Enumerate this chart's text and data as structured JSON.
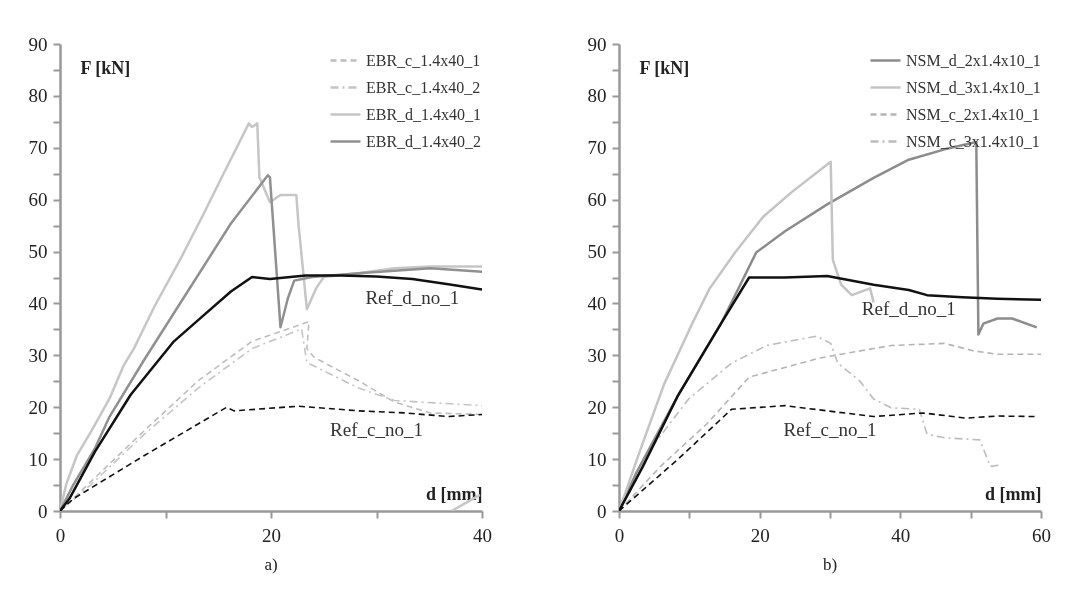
{
  "chart_data": [
    {
      "type": "line",
      "xlabel": "d [mm]",
      "ylabel": "F [kN]",
      "xlim": [
        0,
        40
      ],
      "ylim": [
        0,
        90
      ],
      "xticks": [
        0,
        {
          "value": 10,
          "label": null
        },
        20,
        {
          "value": 30,
          "label": null
        },
        40
      ],
      "yticks": [
        0,
        {
          "value": 5,
          "label": null
        },
        10,
        {
          "value": 15,
          "label": null
        },
        20,
        {
          "value": 25,
          "label": null
        },
        30,
        {
          "value": 35,
          "label": null
        },
        40,
        {
          "value": 45,
          "label": null
        },
        50,
        {
          "value": 55,
          "label": null
        },
        60,
        {
          "value": 65,
          "label": null
        },
        70,
        {
          "value": 75,
          "label": null
        },
        80,
        {
          "value": 85,
          "label": null
        },
        90
      ],
      "legend": "top right",
      "series": [
        {
          "name": "EBR_c_1.4x40_1",
          "color": "#bdbdbd",
          "line_style": "dashed",
          "x": [
            0,
            3,
            8,
            13.1,
            18.2,
            23.6,
            23.4,
            24.1,
            28.3,
            31.7,
            35.1,
            40
          ],
          "values": [
            0,
            5.8,
            15.5,
            25.1,
            32.7,
            36.5,
            31.3,
            29.6,
            25.1,
            21,
            18.9,
            18.6
          ]
        },
        {
          "name": "EBR_c_1.4x40_2",
          "color": "#c4c4c4",
          "line_style": "dashdot",
          "x": [
            0,
            3,
            8,
            13.1,
            18.2,
            22.9,
            23.4,
            28.3,
            31.7,
            40
          ],
          "values": [
            0,
            5.2,
            14.8,
            23.7,
            31.3,
            35.1,
            28.6,
            23.7,
            21.3,
            20.3
          ]
        },
        {
          "name": "EBR_d_1.4x40_1",
          "color": "#c6c6c6",
          "line_style": "solid",
          "x": [
            0,
            0.6,
            1.6,
            3,
            4.7,
            6,
            7,
            9,
            11.4,
            13.5,
            15.5,
            17.9,
            18.2,
            18.7,
            18.9,
            19.9,
            20.9,
            22.4,
            22.6,
            23.4,
            24.3,
            25,
            28.3,
            31.7,
            35.1,
            40
          ],
          "values": [
            0,
            5.2,
            10.7,
            15.5,
            21.7,
            27.9,
            31.3,
            39.6,
            48.5,
            56.8,
            65,
            74.7,
            74,
            74.7,
            64.3,
            59.5,
            60.9,
            60.9,
            55.4,
            38.9,
            43,
            45.1,
            45.8,
            46.8,
            47.1,
            47.1
          ]
        },
        {
          "name": "EBR_d_1.4x40_2",
          "color": "#909090",
          "line_style": "solid",
          "x": [
            0,
            1.3,
            3.3,
            4.7,
            8,
            12.1,
            16.2,
            19.7,
            19.9,
            20.9,
            21.6,
            22.2,
            23.9,
            28.3,
            35.1,
            40
          ],
          "values": [
            0,
            5.2,
            12,
            18.2,
            29.2,
            42.3,
            55.4,
            64.7,
            64.3,
            35.4,
            41,
            44.4,
            45.1,
            45.8,
            46.8,
            46.1
          ]
        },
        {
          "color": "#c6c6c6",
          "line_style": "solid",
          "x": [
            37.1,
            39.8
          ],
          "values": [
            0,
            3.1
          ]
        },
        {
          "color": "#111111",
          "line_style": "solid",
          "x": [
            0,
            0.9,
            3.3,
            6.7,
            10.8,
            13.5,
            16.2,
            18.2,
            19.9,
            23.3,
            26.6,
            30,
            33.4,
            36.8,
            40
          ],
          "values": [
            0,
            2.4,
            11.4,
            22.4,
            32.7,
            37.5,
            42.3,
            45.1,
            44.7,
            45.4,
            45.4,
            45.2,
            44.7,
            43.7,
            42.7
          ]
        },
        {
          "color": "#111111",
          "line_style": "dashed",
          "x": [
            0,
            1.3,
            8,
            15.8,
            16.5,
            22.6,
            28.3,
            32.7,
            36.8,
            40
          ],
          "values": [
            0,
            2.4,
            10.7,
            20,
            19.3,
            20.2,
            19.3,
            18.9,
            18.2,
            18.6
          ]
        }
      ],
      "annotations": [
        {
          "text": "Ref_d_no_1",
          "x": 33.4,
          "y": 44.7
        },
        {
          "text": "Ref_c_no_1",
          "x": 30,
          "y": 19.2
        },
        "a)"
      ]
    },
    {
      "type": "line",
      "xlabel": "d [mm]",
      "ylabel": "F [kN]",
      "xlim": [
        0,
        60
      ],
      "ylim": [
        0,
        90
      ],
      "xticks": [
        0,
        {
          "value": 10,
          "label": null
        },
        20,
        {
          "value": 30,
          "label": null
        },
        40,
        {
          "value": 50,
          "label": null
        },
        60
      ],
      "yticks": [
        0,
        {
          "value": 5,
          "label": null
        },
        10,
        {
          "value": 15,
          "label": null
        },
        20,
        {
          "value": 25,
          "label": null
        },
        30,
        {
          "value": 35,
          "label": null
        },
        40,
        {
          "value": 45,
          "label": null
        },
        50,
        {
          "value": 55,
          "label": null
        },
        60,
        {
          "value": 65,
          "label": null
        },
        70,
        {
          "value": 75,
          "label": null
        },
        80,
        {
          "value": 85,
          "label": null
        },
        90
      ],
      "legend": "top right",
      "series": [
        {
          "name": "NSM_d_2x1.4x10_1",
          "color": "#8c8c8c",
          "line_style": "solid",
          "x": [
            0,
            2.4,
            8.4,
            14.5,
            19.5,
            23.6,
            29.6,
            36.2,
            41.2,
            46.3,
            50.8,
            51.1,
            51.8,
            53.8,
            55.9,
            59.4
          ],
          "values": [
            0,
            7.2,
            22.3,
            36.1,
            49.8,
            53.9,
            59.1,
            64.2,
            67.7,
            69.7,
            71.1,
            34,
            36.1,
            37.1,
            37.1,
            35.4
          ]
        },
        {
          "name": "NSM_d_3x1.4x10_1",
          "color": "#c4c4c4",
          "line_style": "solid",
          "x": [
            0,
            2.9,
            6.4,
            10.4,
            12.9,
            16.5,
            20.5,
            24.6,
            30.1,
            30.4,
            31.6,
            33.1,
            35.7,
            36.2
          ],
          "values": [
            0,
            11.3,
            24.4,
            36.1,
            42.9,
            49.8,
            56.7,
            61.5,
            67.3,
            48.4,
            43.6,
            41.6,
            42.9,
            40.2
          ]
        },
        {
          "name": "NSM_c_2x1.4x10_1",
          "color": "#b4b4b4",
          "line_style": "dashed",
          "x": [
            0,
            5.9,
            12.5,
            18.5,
            28.6,
            38.7,
            46.3,
            50.3,
            53.8,
            60
          ],
          "values": [
            0,
            8.6,
            16.8,
            25.8,
            29.5,
            31.9,
            32.3,
            30.9,
            30.2,
            30.2
          ]
        },
        {
          "name": "NSM_c_3x1.4x10_1",
          "color": "#bcbcbc",
          "line_style": "dashdot",
          "x": [
            0,
            4.9,
            9.9,
            16,
            21,
            28.1,
            30.1,
            31.1,
            34.2,
            36.2,
            38.7,
            42.7,
            43.8,
            46.3,
            51.3,
            52.8,
            54.3
          ],
          "values": [
            0,
            12.7,
            21.6,
            28.5,
            31.9,
            33.7,
            32.3,
            28.5,
            25.1,
            21.6,
            19.9,
            19.6,
            14.8,
            14.1,
            13.7,
            8.6,
            8.9
          ]
        },
        {
          "color": "#111111",
          "line_style": "solid",
          "x": [
            0,
            3.4,
            8.4,
            14.5,
            18.5,
            23.6,
            29.6,
            36.2,
            41.2,
            43.8,
            48.8,
            53.8,
            60
          ],
          "values": [
            0,
            8.6,
            22.3,
            36.1,
            45,
            45,
            45.3,
            43.6,
            42.6,
            41.6,
            41.2,
            40.9,
            40.7
          ]
        },
        {
          "color": "#111111",
          "line_style": "dashed",
          "x": [
            0,
            8.4,
            16,
            23.6,
            36.2,
            43.2,
            49.3,
            53.8,
            59.5
          ],
          "values": [
            0,
            10,
            19.6,
            20.3,
            18.2,
            18.9,
            17.9,
            18.3,
            18.2
          ]
        }
      ],
      "annotations": [
        {
          "text": "Ref_d_no_1",
          "x": 41.2,
          "y": 42.6
        },
        {
          "text": "Ref_c_no_1",
          "x": 30,
          "y": 19.2
        },
        "b)"
      ]
    }
  ]
}
